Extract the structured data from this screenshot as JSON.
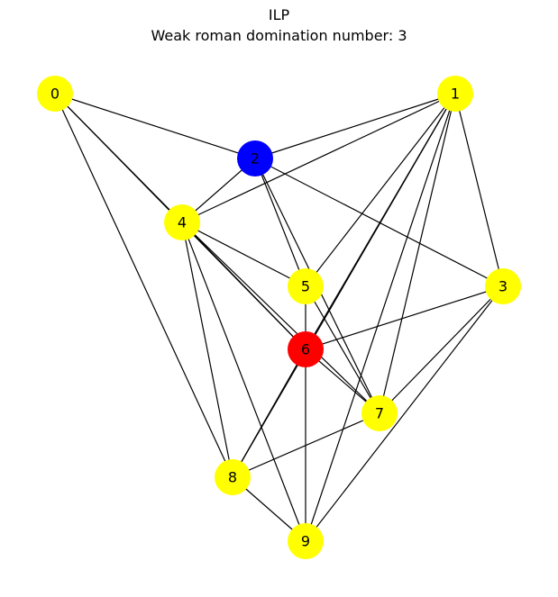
{
  "title": "ILP",
  "subtitle": "Weak roman domination number: 3",
  "graph": {
    "nodes": [
      {
        "id": "0",
        "label": "0",
        "color": "#ffff00"
      },
      {
        "id": "1",
        "label": "1",
        "color": "#ffff00"
      },
      {
        "id": "2",
        "label": "2",
        "color": "#0000ff"
      },
      {
        "id": "3",
        "label": "3",
        "color": "#ffff00"
      },
      {
        "id": "4",
        "label": "4",
        "color": "#ffff00"
      },
      {
        "id": "5",
        "label": "5",
        "color": "#ffff00"
      },
      {
        "id": "6",
        "label": "6",
        "color": "#ff0000"
      },
      {
        "id": "7",
        "label": "7",
        "color": "#ffff00"
      },
      {
        "id": "8",
        "label": "8",
        "color": "#ffff00"
      },
      {
        "id": "9",
        "label": "9",
        "color": "#ffff00"
      }
    ],
    "edges": [
      [
        "0",
        "2"
      ],
      [
        "0",
        "4"
      ],
      [
        "0",
        "6"
      ],
      [
        "0",
        "8"
      ],
      [
        "1",
        "2"
      ],
      [
        "1",
        "3"
      ],
      [
        "1",
        "4"
      ],
      [
        "1",
        "5"
      ],
      [
        "1",
        "6"
      ],
      [
        "1",
        "7"
      ],
      [
        "1",
        "8"
      ],
      [
        "1",
        "9"
      ],
      [
        "2",
        "3"
      ],
      [
        "2",
        "4"
      ],
      [
        "2",
        "5"
      ],
      [
        "2",
        "7"
      ],
      [
        "3",
        "6"
      ],
      [
        "3",
        "7"
      ],
      [
        "3",
        "9"
      ],
      [
        "4",
        "5"
      ],
      [
        "4",
        "6"
      ],
      [
        "4",
        "7"
      ],
      [
        "4",
        "8"
      ],
      [
        "4",
        "9"
      ],
      [
        "5",
        "6"
      ],
      [
        "5",
        "7"
      ],
      [
        "6",
        "7"
      ],
      [
        "6",
        "8"
      ],
      [
        "6",
        "9"
      ],
      [
        "7",
        "8"
      ],
      [
        "8",
        "9"
      ]
    ],
    "edge_color": "#000000"
  }
}
